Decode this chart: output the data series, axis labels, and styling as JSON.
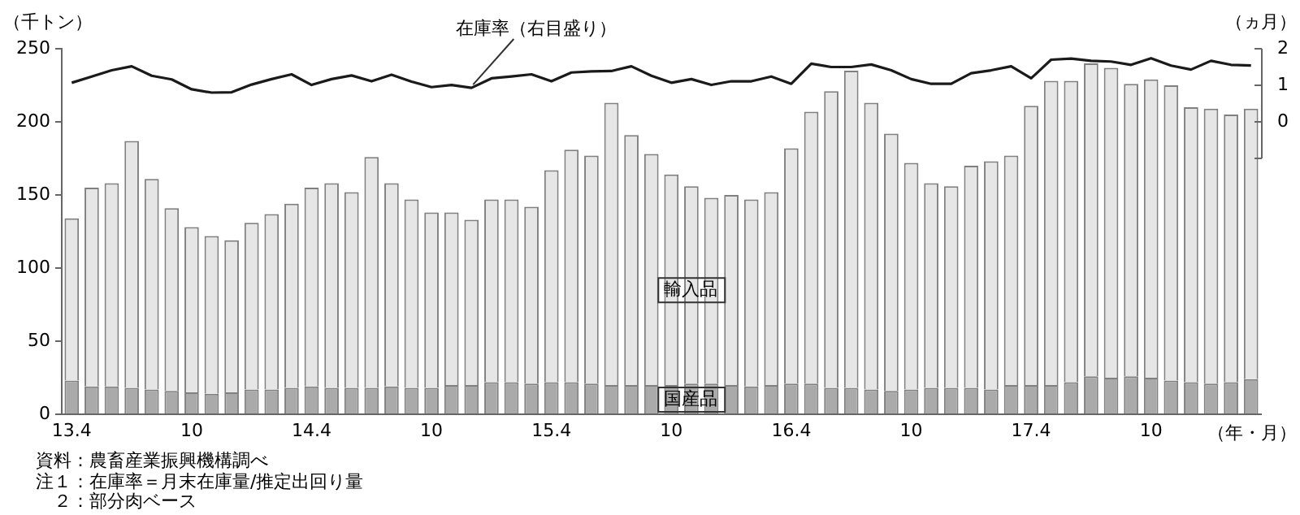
{
  "chart_data": {
    "type": "bar",
    "stacked": true,
    "ylabel": "（千トン）",
    "y2label": "（ヵ月）",
    "xlabel": "（年・月）",
    "categories": [
      "13.4",
      null,
      null,
      null,
      null,
      null,
      "10",
      null,
      null,
      null,
      null,
      null,
      "14.4",
      null,
      null,
      null,
      null,
      null,
      "10",
      null,
      null,
      null,
      null,
      null,
      "15.4",
      null,
      null,
      null,
      null,
      null,
      "10",
      null,
      null,
      null,
      null,
      null,
      "16.4",
      null,
      null,
      null,
      null,
      null,
      "10",
      null,
      null,
      null,
      null,
      null,
      "17.4",
      null,
      null,
      null,
      null,
      null,
      "10",
      null,
      null,
      null,
      null,
      null
    ],
    "series": [
      {
        "name": "国産品",
        "color": "#aaaaaa",
        "values": [
          23,
          19,
          19,
          18,
          17,
          16,
          15,
          14,
          15,
          17,
          17,
          18,
          19,
          18,
          18,
          18,
          19,
          18,
          18,
          20,
          20,
          22,
          22,
          21,
          22,
          22,
          21,
          20,
          20,
          20,
          20,
          21,
          21,
          20,
          19,
          20,
          21,
          21,
          18,
          18,
          17,
          16,
          17,
          18,
          18,
          18,
          17,
          20,
          20,
          20,
          22,
          26,
          25,
          26,
          25,
          23,
          22,
          21,
          22,
          24
        ]
      },
      {
        "name": "輸入品",
        "color": "#e6e6e6",
        "values": [
          111,
          136,
          139,
          169,
          144,
          125,
          113,
          108,
          104,
          114,
          120,
          126,
          136,
          140,
          134,
          158,
          139,
          129,
          120,
          118,
          113,
          125,
          125,
          121,
          145,
          159,
          156,
          193,
          171,
          158,
          144,
          135,
          127,
          130,
          128,
          132,
          161,
          186,
          203,
          217,
          196,
          176,
          155,
          140,
          138,
          152,
          156,
          157,
          191,
          208,
          206,
          214,
          212,
          200,
          204,
          202,
          188,
          188,
          183,
          185
        ]
      },
      {
        "name": "在庫率（右目盛り）",
        "type": "line",
        "axis": "y2",
        "color": "#1a1a1a",
        "values": [
          1.07,
          1.24,
          1.41,
          1.52,
          1.26,
          1.16,
          0.89,
          0.8,
          0.81,
          1.02,
          1.17,
          1.3,
          1.01,
          1.17,
          1.27,
          1.11,
          1.29,
          1.1,
          0.95,
          1.01,
          0.93,
          1.19,
          1.24,
          1.3,
          1.11,
          1.35,
          1.38,
          1.39,
          1.52,
          1.26,
          1.07,
          1.17,
          1.01,
          1.11,
          1.11,
          1.24,
          1.04,
          1.59,
          1.5,
          1.5,
          1.57,
          1.41,
          1.17,
          1.04,
          1.04,
          1.33,
          1.41,
          1.52,
          1.19,
          1.7,
          1.73,
          1.67,
          1.65,
          1.56,
          1.74,
          1.54,
          1.43,
          1.67,
          1.56,
          1.54
        ]
      }
    ],
    "ylim": [
      0,
      250
    ],
    "yticks": [
      0,
      50,
      100,
      150,
      200,
      250
    ],
    "y2lim": [
      -8,
      2
    ],
    "y2ticks": [
      2,
      1,
      0,
      {
        "value": -1,
        "label": null
      }
    ],
    "grid": false,
    "legend": false,
    "marker": "none",
    "line_style": "solid",
    "annotations": [
      "資料：農畜産業振興機構調べ",
      "注１：在庫率＝月末在庫量/推定出回り量",
      "　２：部分肉ベース"
    ]
  }
}
